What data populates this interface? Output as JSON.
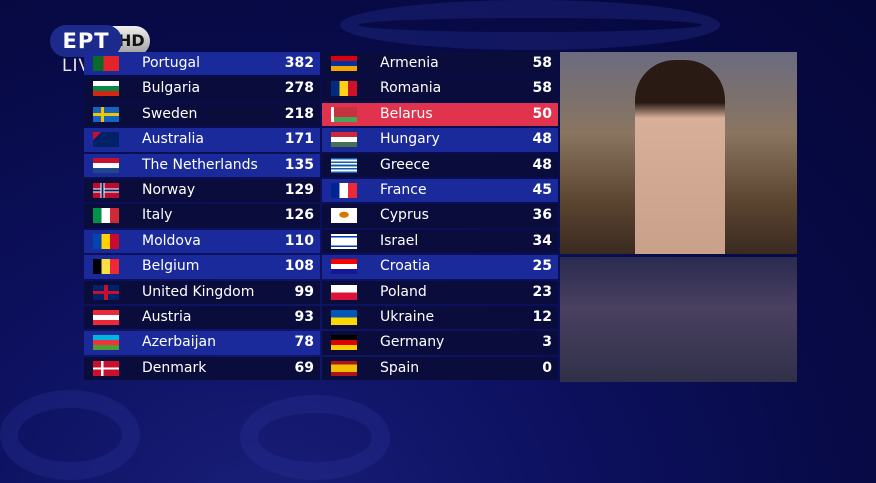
{
  "broadcaster": {
    "logo_text": "ΕΡΤ",
    "hd_label": "HD",
    "live_label": "LIVE"
  },
  "scoreboard": {
    "left": [
      {
        "country": "Portugal",
        "points": 382,
        "style": "hl",
        "flag": "linear-gradient(90deg,#0a6a2a 40%,#e3242b 40%)"
      },
      {
        "country": "Bulgaria",
        "points": 278,
        "style": "",
        "flag": "linear-gradient(#fff 33%,#0a8a4a 33% 66%,#d62612 66%)"
      },
      {
        "country": "Sweden",
        "points": 218,
        "style": "",
        "flag": "linear-gradient(90deg,transparent 30%,#f5c400 30% 42%,transparent 42%),linear-gradient(#1565c0 40%,#f5c400 40% 60%,#1565c0 60%)"
      },
      {
        "country": "Australia",
        "points": 171,
        "style": "hl",
        "flag": "linear-gradient(135deg,#c8102e 0 20%,#012169 20%)"
      },
      {
        "country": "The Netherlands",
        "points": 135,
        "style": "hl",
        "flag": "linear-gradient(#c8102e 33%,#fff 33% 66%,#21468b 66%)"
      },
      {
        "country": "Norway",
        "points": 129,
        "style": "",
        "flag": "linear-gradient(90deg,transparent 28%,#fff 28% 32%,#00205b 32% 40%,#fff 40% 44%,transparent 44%),linear-gradient(#ba0c2f 38%,#fff 38% 42%,#00205b 42% 58%,#fff 58% 62%,#ba0c2f 62%)"
      },
      {
        "country": "Italy",
        "points": 126,
        "style": "",
        "flag": "linear-gradient(90deg,#009246 33%,#fff 33% 66%,#ce2b37 66%)"
      },
      {
        "country": "Moldova",
        "points": 110,
        "style": "hl",
        "flag": "linear-gradient(90deg,#0046ae 33%,#ffd200 33% 66%,#cc092f 66%)"
      },
      {
        "country": "Belgium",
        "points": 108,
        "style": "hl",
        "flag": "linear-gradient(90deg,#000 33%,#fae042 33% 66%,#ed2939 66%)"
      },
      {
        "country": "United Kingdom",
        "points": 99,
        "style": "",
        "flag": "linear-gradient(90deg,transparent 42%,#c8102e 42% 58%,transparent 58%),linear-gradient(#012169 40%,#c8102e 40% 60%,#012169 60%)"
      },
      {
        "country": "Austria",
        "points": 93,
        "style": "",
        "flag": "linear-gradient(#ed2939 33%,#fff 33% 66%,#ed2939 66%)"
      },
      {
        "country": "Azerbaijan",
        "points": 78,
        "style": "hl",
        "flag": "linear-gradient(#00b5e2 33%,#ef3340 33% 66%,#509e2f 66%)"
      },
      {
        "country": "Denmark",
        "points": 69,
        "style": "",
        "flag": "linear-gradient(90deg,transparent 30%,#fff 30% 40%,transparent 40%),linear-gradient(#c8102e 42%,#fff 42% 58%,#c8102e 58%)"
      }
    ],
    "right": [
      {
        "country": "Armenia",
        "points": 58,
        "style": "",
        "flag": "linear-gradient(#d90012 33%,#0033a0 33% 66%,#f2a800 66%)"
      },
      {
        "country": "Romania",
        "points": 58,
        "style": "",
        "flag": "linear-gradient(90deg,#002b7f 33%,#fcd116 33% 66%,#ce1126 66%)"
      },
      {
        "country": "Belarus",
        "points": 50,
        "style": "cur",
        "flag": "linear-gradient(90deg,#fff 12%,transparent 12%),linear-gradient(#c8313e 66%,#4aa657 66%)"
      },
      {
        "country": "Hungary",
        "points": 48,
        "style": "hl",
        "flag": "linear-gradient(#ce2939 33%,#fff 33% 66%,#477050 66%)"
      },
      {
        "country": "Greece",
        "points": 48,
        "style": "",
        "flag": "repeating-linear-gradient(#0d5eaf 0 1.67px,#fff 1.67px 3.33px)"
      },
      {
        "country": "France",
        "points": 45,
        "style": "hl",
        "flag": "linear-gradient(90deg,#002395 33%,#fff 33% 66%,#ed2939 66%)"
      },
      {
        "country": "Cyprus",
        "points": 36,
        "style": "",
        "flag": "radial-gradient(ellipse at 50% 45%,#d57800 25%,#fff 27%)"
      },
      {
        "country": "Israel",
        "points": 34,
        "style": "",
        "flag": "linear-gradient(#fff 12%,#0038b8 12% 22%,#fff 22% 78%,#0038b8 78% 88%,#fff 88%)"
      },
      {
        "country": "Croatia",
        "points": 25,
        "style": "hl",
        "flag": "linear-gradient(#ff0000 33%,#fff 33% 66%,#171796 66%)"
      },
      {
        "country": "Poland",
        "points": 23,
        "style": "",
        "flag": "linear-gradient(#fff 50%,#dc143c 50%)"
      },
      {
        "country": "Ukraine",
        "points": 12,
        "style": "",
        "flag": "linear-gradient(#0057b7 50%,#ffd700 50%)"
      },
      {
        "country": "Germany",
        "points": 3,
        "style": "",
        "flag": "linear-gradient(#000 33%,#dd0000 33% 66%,#ffce00 66%)"
      },
      {
        "country": "Spain",
        "points": 0,
        "style": "",
        "flag": "linear-gradient(#aa151b 25%,#f1bf00 25% 75%,#aa151b 75%)"
      }
    ]
  }
}
